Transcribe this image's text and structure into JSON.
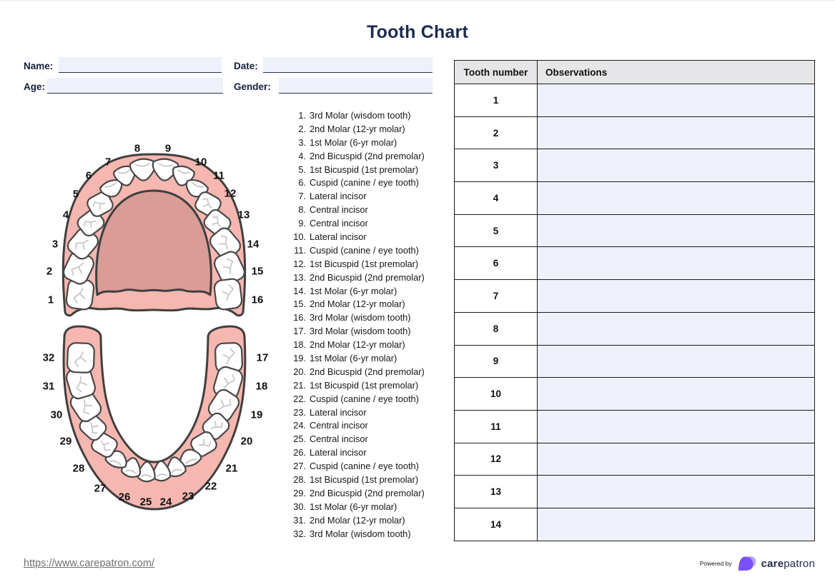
{
  "title": "Tooth Chart",
  "form": {
    "name_label": "Name:",
    "name_value": "",
    "date_label": "Date:",
    "date_value": "",
    "age_label": "Age:",
    "age_value": "",
    "gender_label": "Gender:",
    "gender_value": ""
  },
  "diagram": {
    "upper_labels": [
      "1",
      "2",
      "3",
      "4",
      "5",
      "6",
      "7",
      "8",
      "9",
      "10",
      "11",
      "12",
      "13",
      "14",
      "15",
      "16"
    ],
    "lower_labels": [
      "17",
      "18",
      "19",
      "20",
      "21",
      "22",
      "23",
      "24",
      "25",
      "26",
      "27",
      "28",
      "29",
      "30",
      "31",
      "32"
    ]
  },
  "tooth_list": {
    "items": [
      {
        "number": "1",
        "name": "3rd Molar (wisdom tooth)"
      },
      {
        "number": "2",
        "name": "2nd Molar (12-yr molar)"
      },
      {
        "number": "3",
        "name": "1st Molar (6-yr molar)"
      },
      {
        "number": "4",
        "name": "2nd Bicuspid (2nd premolar)"
      },
      {
        "number": "5",
        "name": "1st Bicuspid (1st premolar)"
      },
      {
        "number": "6",
        "name": "Cuspid (canine / eye tooth)"
      },
      {
        "number": "7",
        "name": "Lateral incisor"
      },
      {
        "number": "8",
        "name": "Central incisor"
      },
      {
        "number": "9",
        "name": "Central incisor"
      },
      {
        "number": "10",
        "name": "Lateral incisor"
      },
      {
        "number": "11",
        "name": "Cuspid (canine / eye tooth)"
      },
      {
        "number": "12",
        "name": "1st Bicuspid (1st premolar)"
      },
      {
        "number": "13",
        "name": "2nd Bicuspid (2nd premolar)"
      },
      {
        "number": "14",
        "name": "1st Molar (6-yr molar)"
      },
      {
        "number": "15",
        "name": "2nd Molar (12-yr molar)"
      },
      {
        "number": "16",
        "name": "3rd Molar (wisdom tooth)"
      },
      {
        "number": "17",
        "name": "3rd Molar (wisdom tooth)"
      },
      {
        "number": "18",
        "name": "2nd Molar (12-yr molar)"
      },
      {
        "number": "19",
        "name": "1st Molar (6-yr molar)"
      },
      {
        "number": "20",
        "name": "2nd Bicuspid (2nd premolar)"
      },
      {
        "number": "21",
        "name": "1st Bicuspid (1st premolar)"
      },
      {
        "number": "22",
        "name": "Cuspid (canine / eye tooth)"
      },
      {
        "number": "23",
        "name": "Lateral incisor"
      },
      {
        "number": "24",
        "name": "Central incisor"
      },
      {
        "number": "25",
        "name": "Central incisor"
      },
      {
        "number": "26",
        "name": "Lateral incisor"
      },
      {
        "number": "27",
        "name": "Cuspid (canine / eye tooth)"
      },
      {
        "number": "28",
        "name": "1st Bicuspid (1st premolar)"
      },
      {
        "number": "29",
        "name": "2nd Bicuspid (2nd premolar)"
      },
      {
        "number": "30",
        "name": "1st Molar (6-yr molar)"
      },
      {
        "number": "31",
        "name": "2nd Molar (12-yr molar)"
      },
      {
        "number": "32",
        "name": "3rd Molar (wisdom tooth)"
      }
    ]
  },
  "table": {
    "headers": [
      "Tooth number",
      "Observations"
    ],
    "rows": [
      {
        "tooth_number": "1",
        "observation": ""
      },
      {
        "tooth_number": "2",
        "observation": ""
      },
      {
        "tooth_number": "3",
        "observation": ""
      },
      {
        "tooth_number": "4",
        "observation": ""
      },
      {
        "tooth_number": "5",
        "observation": ""
      },
      {
        "tooth_number": "6",
        "observation": ""
      },
      {
        "tooth_number": "7",
        "observation": ""
      },
      {
        "tooth_number": "8",
        "observation": ""
      },
      {
        "tooth_number": "9",
        "observation": ""
      },
      {
        "tooth_number": "10",
        "observation": ""
      },
      {
        "tooth_number": "11",
        "observation": ""
      },
      {
        "tooth_number": "12",
        "observation": ""
      },
      {
        "tooth_number": "13",
        "observation": ""
      },
      {
        "tooth_number": "14",
        "observation": ""
      }
    ]
  },
  "footer": {
    "url": "https://www.carepatron.com/",
    "powered_by": "Powered by",
    "brand_bold": "care",
    "brand_light": "patron"
  },
  "colors": {
    "accent_navy": "#1b2a4e",
    "gum_pink": "#f5b7b0",
    "palate_pink": "#d99c96",
    "outline_dark": "#3f3f3f",
    "field_fill": "#eef0fa",
    "table_header_bg": "#e6e6e8",
    "logo_purple": "#7a52f4",
    "logo_purple_light": "#b7a6f7"
  }
}
